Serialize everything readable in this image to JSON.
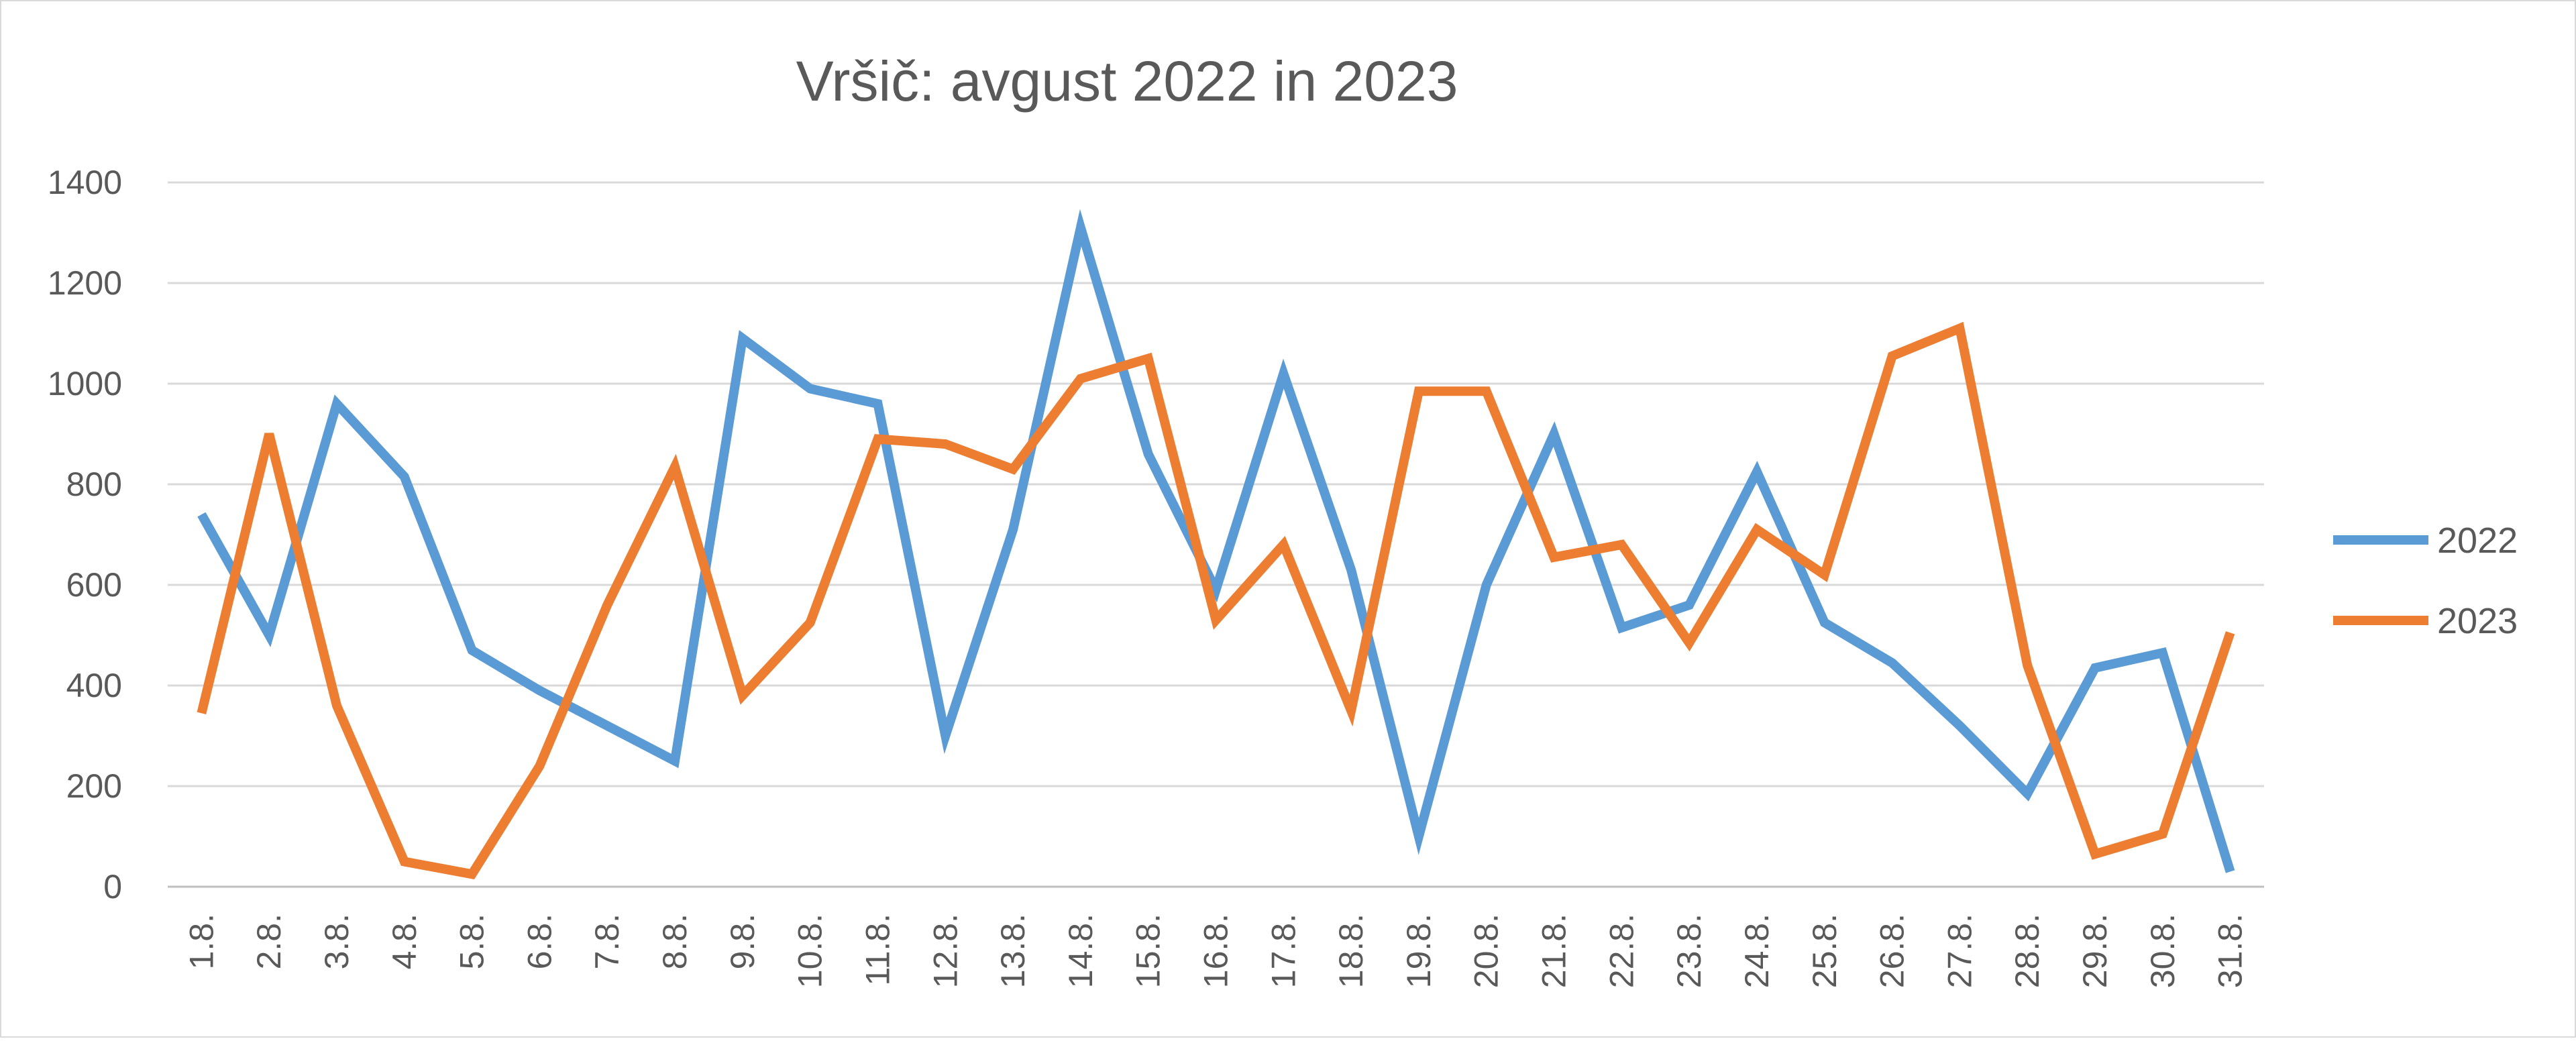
{
  "chart_data": {
    "type": "line",
    "title": "Vršič: avgust 2022 in 2023",
    "xlabel": "",
    "ylabel": "",
    "categories": [
      "1.8.",
      "2.8.",
      "3.8.",
      "4.8.",
      "5.8.",
      "6.8.",
      "7.8.",
      "8.8.",
      "9.8.",
      "10.8.",
      "11.8.",
      "12.8.",
      "13.8.",
      "14.8.",
      "15.8.",
      "16.8.",
      "17.8.",
      "18.8.",
      "19.8.",
      "20.8.",
      "21.8.",
      "22.8.",
      "23.8.",
      "24.8.",
      "25.8.",
      "26.8.",
      "27.8.",
      "28.8.",
      "29.8.",
      "30.8.",
      "31.8."
    ],
    "series": [
      {
        "name": "2022",
        "color": "#5B9BD5",
        "values": [
          740,
          500,
          960,
          815,
          470,
          390,
          320,
          250,
          1090,
          990,
          960,
          300,
          710,
          1310,
          860,
          590,
          1020,
          630,
          100,
          600,
          900,
          515,
          560,
          825,
          525,
          445,
          320,
          185,
          435,
          465,
          30
        ]
      },
      {
        "name": "2023",
        "color": "#ED7D31",
        "values": [
          345,
          900,
          360,
          50,
          25,
          240,
          560,
          835,
          380,
          525,
          890,
          880,
          830,
          1010,
          1050,
          530,
          680,
          350,
          985,
          985,
          655,
          680,
          485,
          710,
          620,
          1055,
          1110,
          440,
          65,
          105,
          505
        ]
      }
    ],
    "ylim": [
      0,
      1400
    ],
    "yticks": [
      0,
      200,
      400,
      600,
      800,
      1000,
      1200,
      1400
    ],
    "grid": true,
    "legend": "right"
  }
}
